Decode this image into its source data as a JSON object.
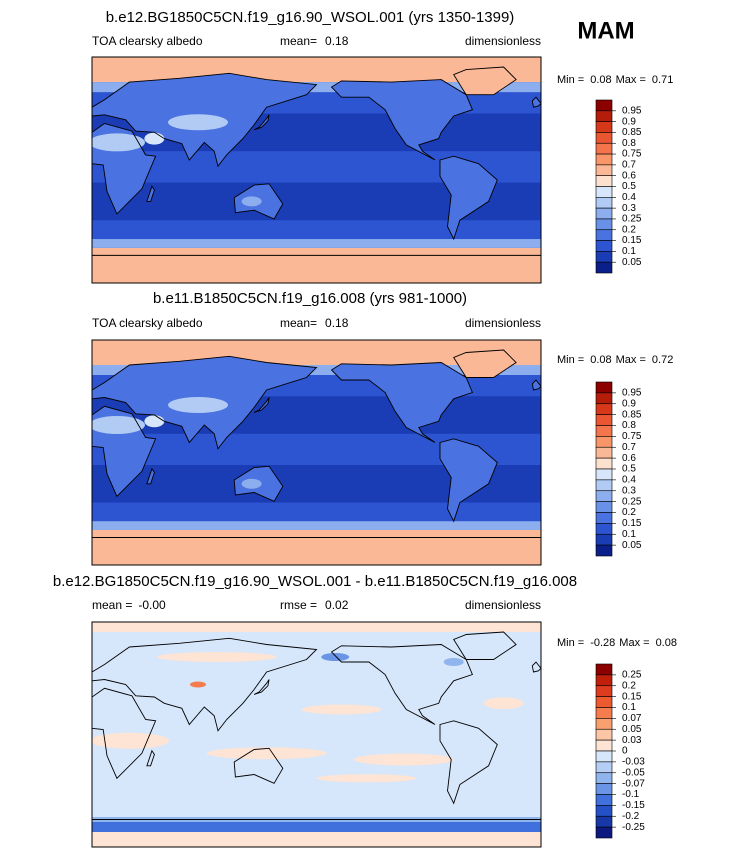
{
  "season": "MAM",
  "panels": [
    {
      "title": "b.e12.BG1850C5CN.f19_g16.90_WSOL.001 (yrs 1350-1399)",
      "left_label": "TOA clearsky albedo",
      "stat_label": "mean=",
      "stat_value": 0.18,
      "units": "dimensionless",
      "min_label": "Min =",
      "min": 0.08,
      "max_label": "Max =",
      "max": 0.71,
      "levels": [
        0.95,
        0.9,
        0.85,
        0.8,
        0.75,
        0.7,
        0.6,
        0.5,
        0.4,
        0.3,
        0.25,
        0.2,
        0.15,
        0.1,
        0.05
      ],
      "colors": [
        "#8c0000",
        "#b51d0a",
        "#d7381a",
        "#ea5532",
        "#f4744c",
        "#f89669",
        "#fbb896",
        "#fde1cf",
        "#d7e6fb",
        "#b1cbf4",
        "#8cadee",
        "#6a91e8",
        "#4a72e0",
        "#2d55d2",
        "#1a3cb4",
        "#0b1f8a"
      ]
    },
    {
      "title": "b.e11.B1850C5CN.f19_g16.008 (yrs 981-1000)",
      "left_label": "TOA clearsky albedo",
      "stat_label": "mean=",
      "stat_value": 0.18,
      "units": "dimensionless",
      "min_label": "Min =",
      "min": 0.08,
      "max_label": "Max =",
      "max": 0.72,
      "levels": [
        0.95,
        0.9,
        0.85,
        0.8,
        0.75,
        0.7,
        0.6,
        0.5,
        0.4,
        0.3,
        0.25,
        0.2,
        0.15,
        0.1,
        0.05
      ],
      "colors": [
        "#8c0000",
        "#b51d0a",
        "#d7381a",
        "#ea5532",
        "#f4744c",
        "#f89669",
        "#fbb896",
        "#fde1cf",
        "#d7e6fb",
        "#b1cbf4",
        "#8cadee",
        "#6a91e8",
        "#4a72e0",
        "#2d55d2",
        "#1a3cb4",
        "#0b1f8a"
      ]
    },
    {
      "title": "b.e12.BG1850C5CN.f19_g16.90_WSOL.001 - b.e11.B1850C5CN.f19_g16.008",
      "left_label": "mean =",
      "left_value": "-0.00",
      "stat_label": "rmse =",
      "stat_value": 0.02,
      "units": "dimensionless",
      "min_label": "Min =",
      "min": -0.28,
      "max_label": "Max =",
      "max": 0.08,
      "levels": [
        0.25,
        0.2,
        0.15,
        0.1,
        0.07,
        0.05,
        0.03,
        0,
        -0.03,
        -0.05,
        -0.07,
        -0.1,
        -0.15,
        -0.2,
        -0.25
      ],
      "colors": [
        "#8c0000",
        "#c0200a",
        "#de3c1e",
        "#ee5a30",
        "#f57c4c",
        "#f9a070",
        "#fbc6a6",
        "#fde4d4",
        "#d6e6fb",
        "#b4cef5",
        "#90b4ee",
        "#6a94e6",
        "#4070dc",
        "#2450c8",
        "#1838a8",
        "#0c1a80"
      ]
    }
  ]
}
